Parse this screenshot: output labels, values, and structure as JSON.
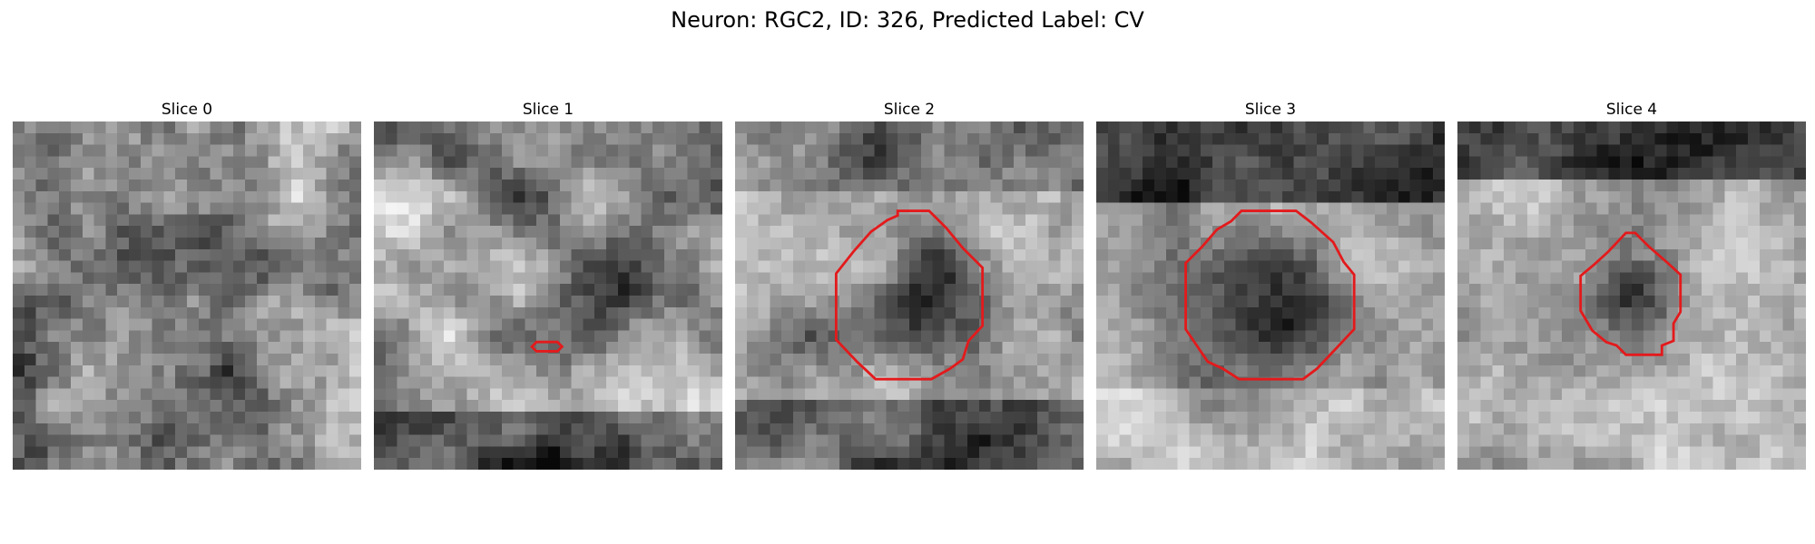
{
  "figure": {
    "title": "Neuron: RGC2, ID: 326, Predicted Label: CV"
  },
  "panels": [
    {
      "title": "Slice 0",
      "contour": "none"
    },
    {
      "title": "Slice 1",
      "contour": "tiny"
    },
    {
      "title": "Slice 2",
      "contour": "large"
    },
    {
      "title": "Slice 3",
      "contour": "large"
    },
    {
      "title": "Slice 4",
      "contour": "medium"
    }
  ],
  "colors": {
    "contour": "#e31a1c",
    "background": "#ffffff"
  }
}
